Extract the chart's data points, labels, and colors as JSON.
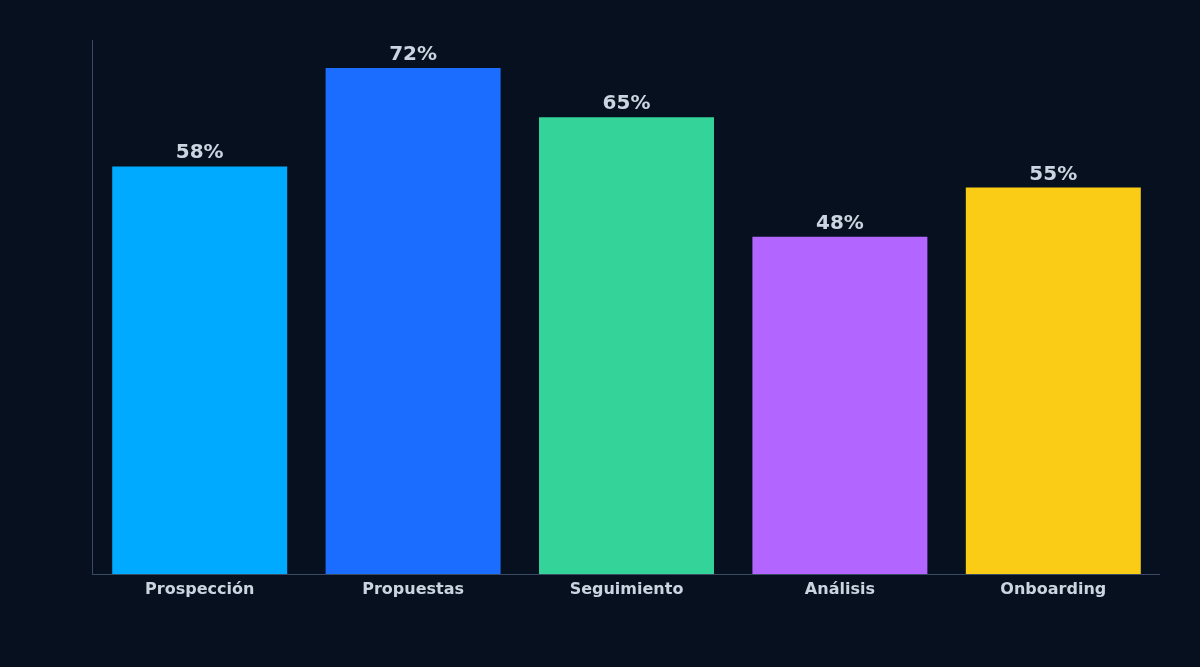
{
  "chart_data": {
    "type": "bar",
    "categories": [
      "Prospección",
      "Propuestas",
      "Seguimiento",
      "Análisis",
      "Onboarding"
    ],
    "values": [
      58,
      72,
      65,
      48,
      55
    ],
    "value_labels": [
      "58%",
      "72%",
      "65%",
      "48%",
      "55%"
    ],
    "colors": [
      "#00aaff",
      "#1a6dff",
      "#34d399",
      "#b366ff",
      "#facc15"
    ],
    "ylim": [
      0,
      76
    ],
    "tick_labels": "x"
  }
}
